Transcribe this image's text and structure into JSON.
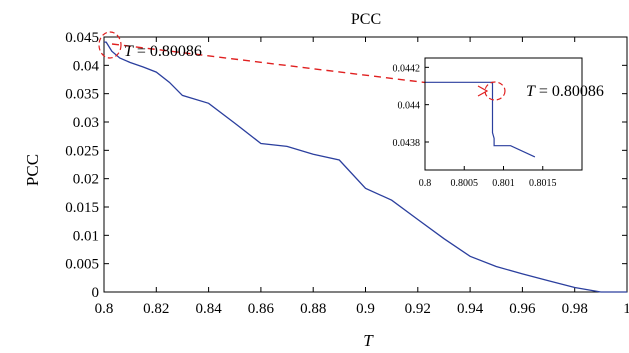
{
  "chart_data": {
    "type": "line",
    "title": "PCC",
    "xlabel": "T",
    "ylabel": "PCC",
    "xlim": [
      0.8,
      1.0
    ],
    "ylim": [
      0,
      0.045
    ],
    "x_ticks": [
      "0.8",
      "0.82",
      "0.84",
      "0.86",
      "0.88",
      "0.9",
      "0.92",
      "0.94",
      "0.96",
      "0.98",
      "1"
    ],
    "y_ticks": [
      "0",
      "0.005",
      "0.01",
      "0.015",
      "0.02",
      "0.025",
      "0.03",
      "0.035",
      "0.04",
      "0.045"
    ],
    "grid": false,
    "series": [
      {
        "color": "#2b3f9e",
        "x": [
          0.8,
          0.80086,
          0.803,
          0.806,
          0.81,
          0.815,
          0.82,
          0.825,
          0.83,
          0.84,
          0.85,
          0.86,
          0.87,
          0.88,
          0.89,
          0.9,
          0.91,
          0.92,
          0.93,
          0.94,
          0.95,
          0.96,
          0.97,
          0.98,
          0.99,
          1.0
        ],
        "y": [
          0.0441,
          0.0441,
          0.0425,
          0.0413,
          0.0405,
          0.0397,
          0.0388,
          0.037,
          0.0347,
          0.0333,
          0.0298,
          0.0262,
          0.0257,
          0.0243,
          0.0233,
          0.0183,
          0.0162,
          0.0128,
          0.0094,
          0.0063,
          0.0045,
          0.0032,
          0.002,
          0.0008,
          0.0,
          0.0
        ]
      }
    ],
    "annotation": {
      "label": "T",
      "text": " = 0.80086",
      "x": 0.80086,
      "y": 0.0441
    },
    "inset": {
      "xlim": [
        0.8,
        0.802
      ],
      "ylim": [
        0.04365,
        0.04425
      ],
      "x_ticks": [
        "0.8",
        "0.8005",
        "0.801",
        "0.8015"
      ],
      "x_tick_values": [
        0.8,
        0.8005,
        0.801,
        0.8015
      ],
      "y_ticks": [
        "0.0438",
        "0.044",
        "0.0442"
      ],
      "y_tick_values": [
        0.0438,
        0.044,
        0.0442
      ],
      "x": [
        0.8,
        0.80082,
        0.80086,
        0.80086,
        0.80088,
        0.80088,
        0.80094,
        0.80094,
        0.80109,
        0.8014
      ],
      "y": [
        0.04412,
        0.04412,
        0.04412,
        0.04385,
        0.04382,
        0.04378,
        0.04378,
        0.04378,
        0.04378,
        0.04372
      ],
      "annotation": {
        "label": "T",
        "text": " = 0.80086"
      }
    }
  }
}
